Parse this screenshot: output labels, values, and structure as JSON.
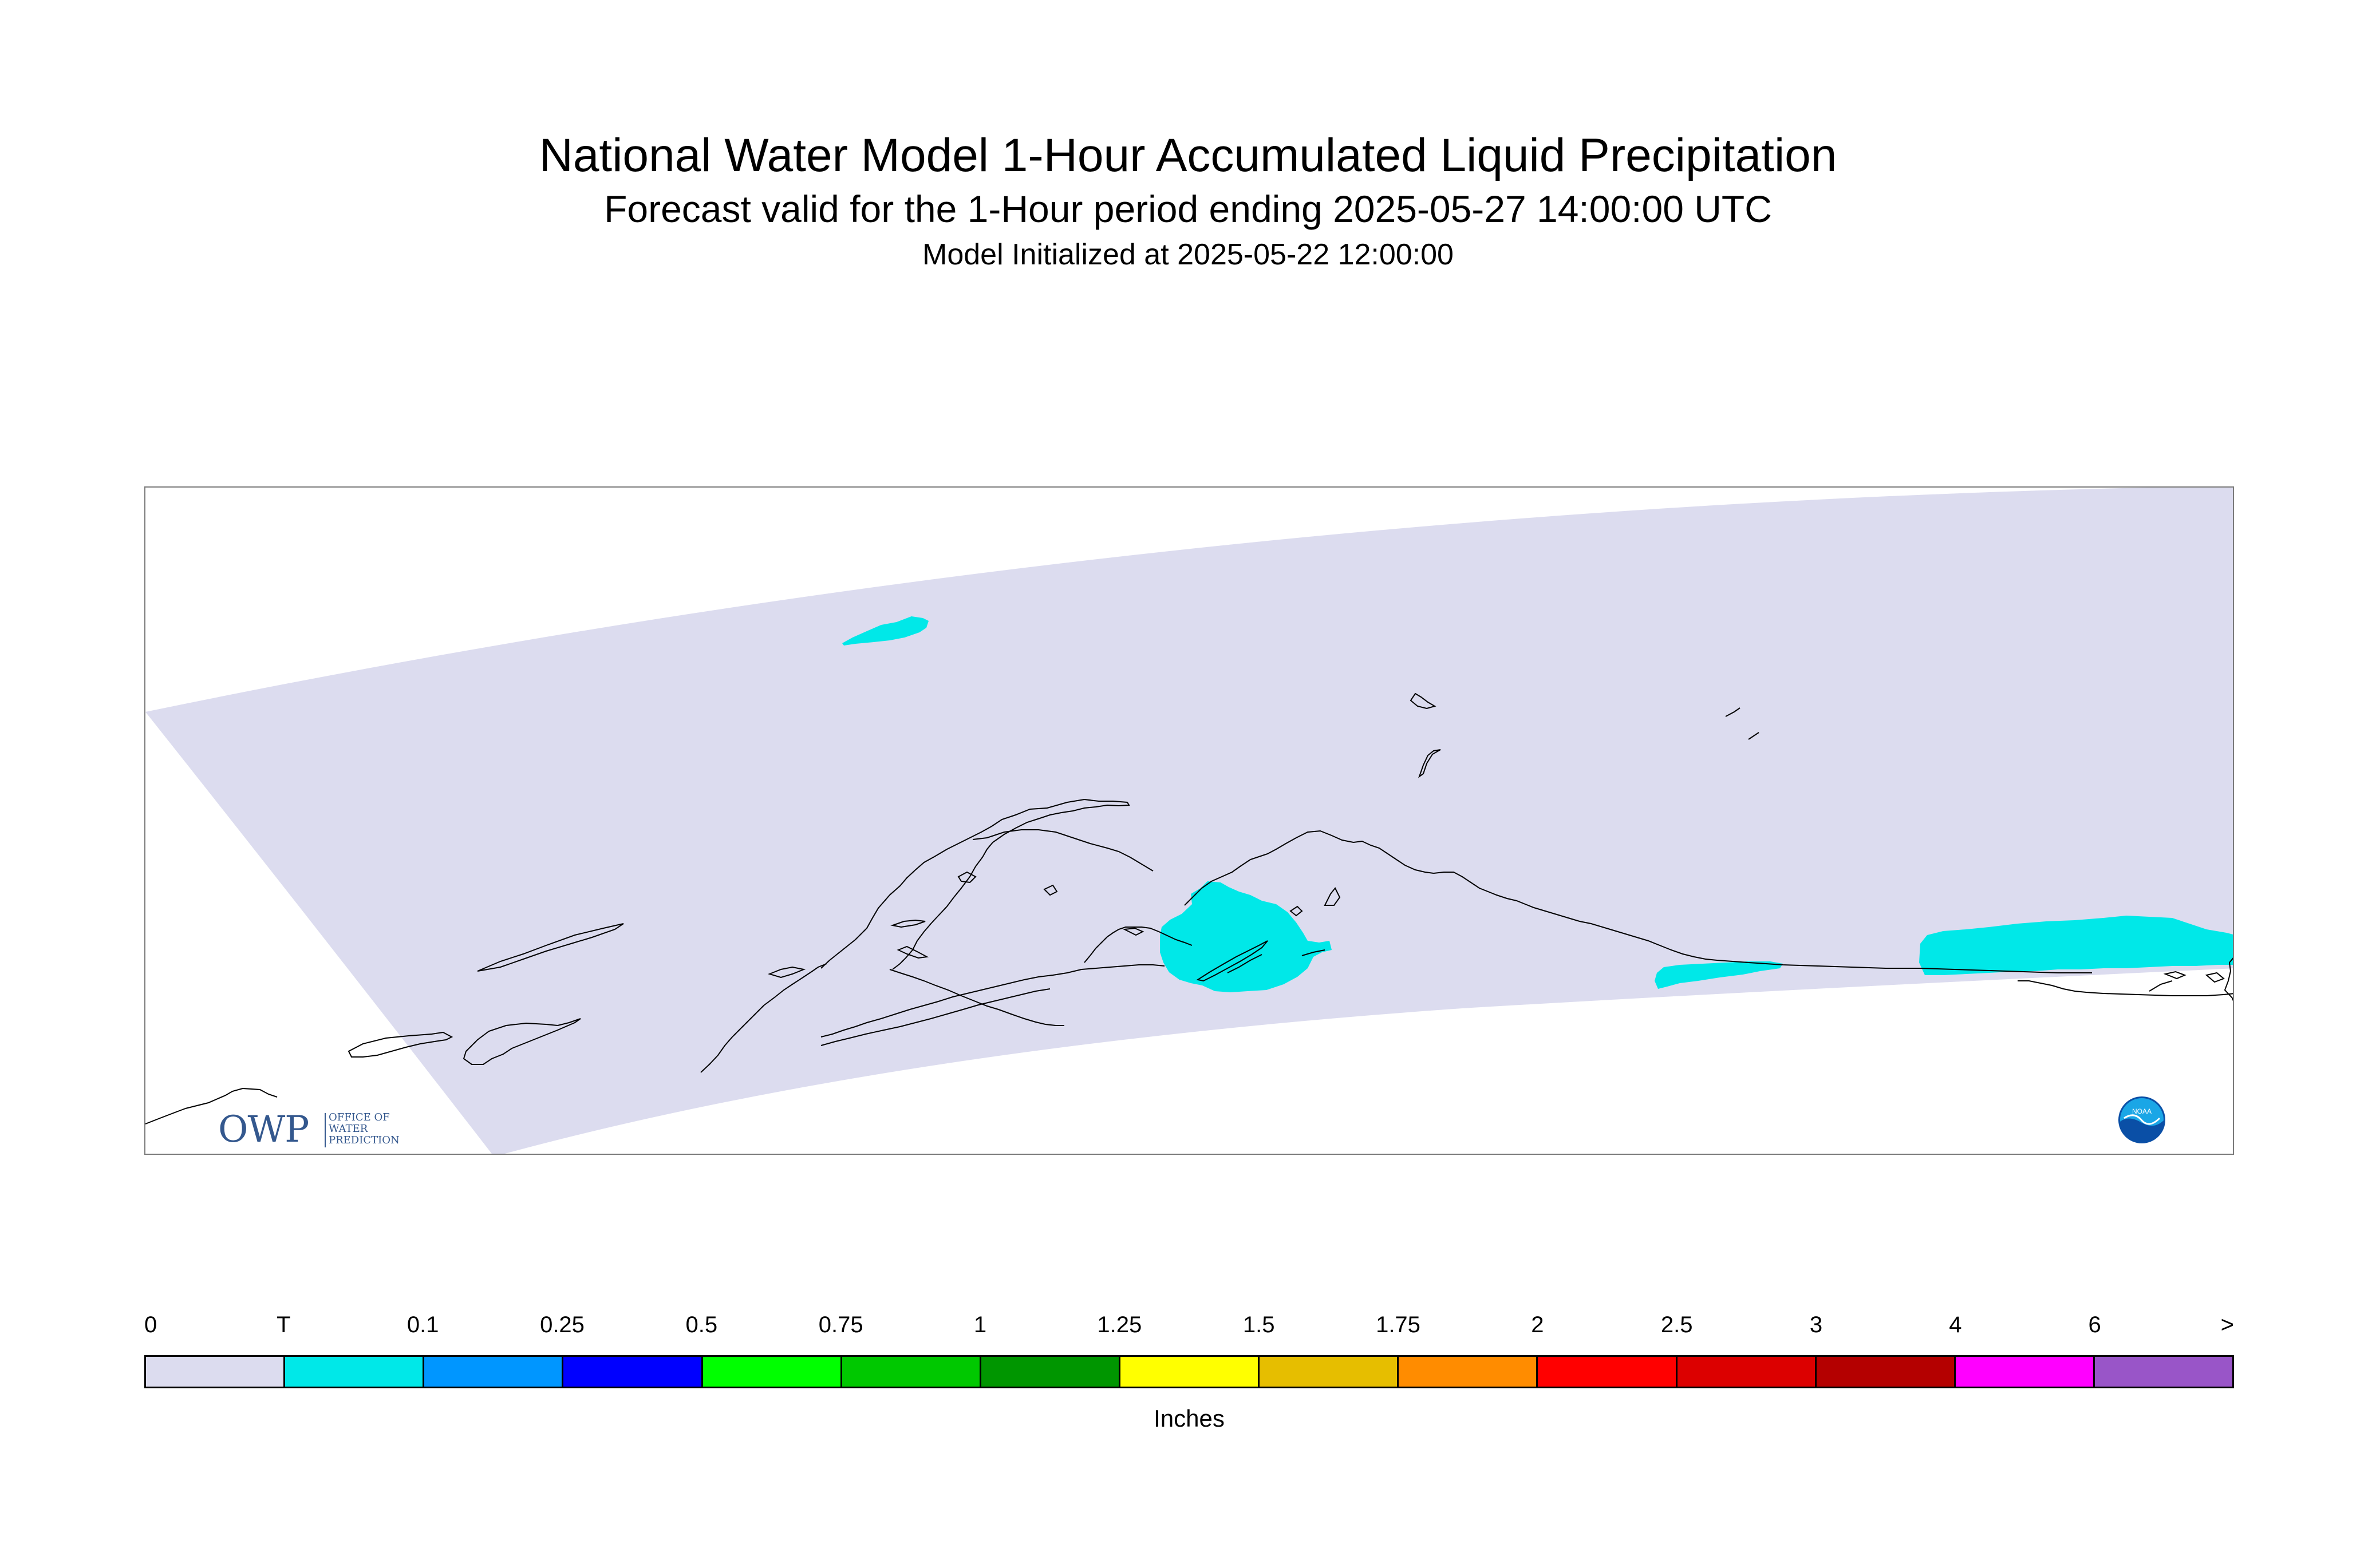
{
  "title": "National Water Model 1-Hour Accumulated Liquid Precipitation",
  "subtitle": "Forecast valid for the 1-Hour period ending 2025-05-27 14:00:00 UTC",
  "init_line": "Model Initialized at 2025-05-22 12:00:00",
  "logos": {
    "owp_letters": "OWP",
    "owp_text": "OFFICE OF\nWATER\nPREDICTION",
    "noaa_text": "NOAA"
  },
  "legend": {
    "units": "Inches",
    "tick_labels": [
      "0",
      "T",
      "0.1",
      "0.25",
      "0.5",
      "0.75",
      "1",
      "1.25",
      "1.5",
      "1.75",
      "2",
      "2.5",
      "3",
      "4",
      "6",
      ">"
    ],
    "colors": [
      "#dcdcef",
      "#00e8e8",
      "#0096ff",
      "#0000ff",
      "#00ff00",
      "#00c800",
      "#009600",
      "#ffff00",
      "#e6be00",
      "#ff8c00",
      "#ff0000",
      "#dc0000",
      "#b40000",
      "#ff00ff",
      "#9955c8"
    ]
  },
  "map": {
    "domain_color": "#dcdcef",
    "precip_color": "#00e8e8",
    "coastline_color": "#000000"
  }
}
